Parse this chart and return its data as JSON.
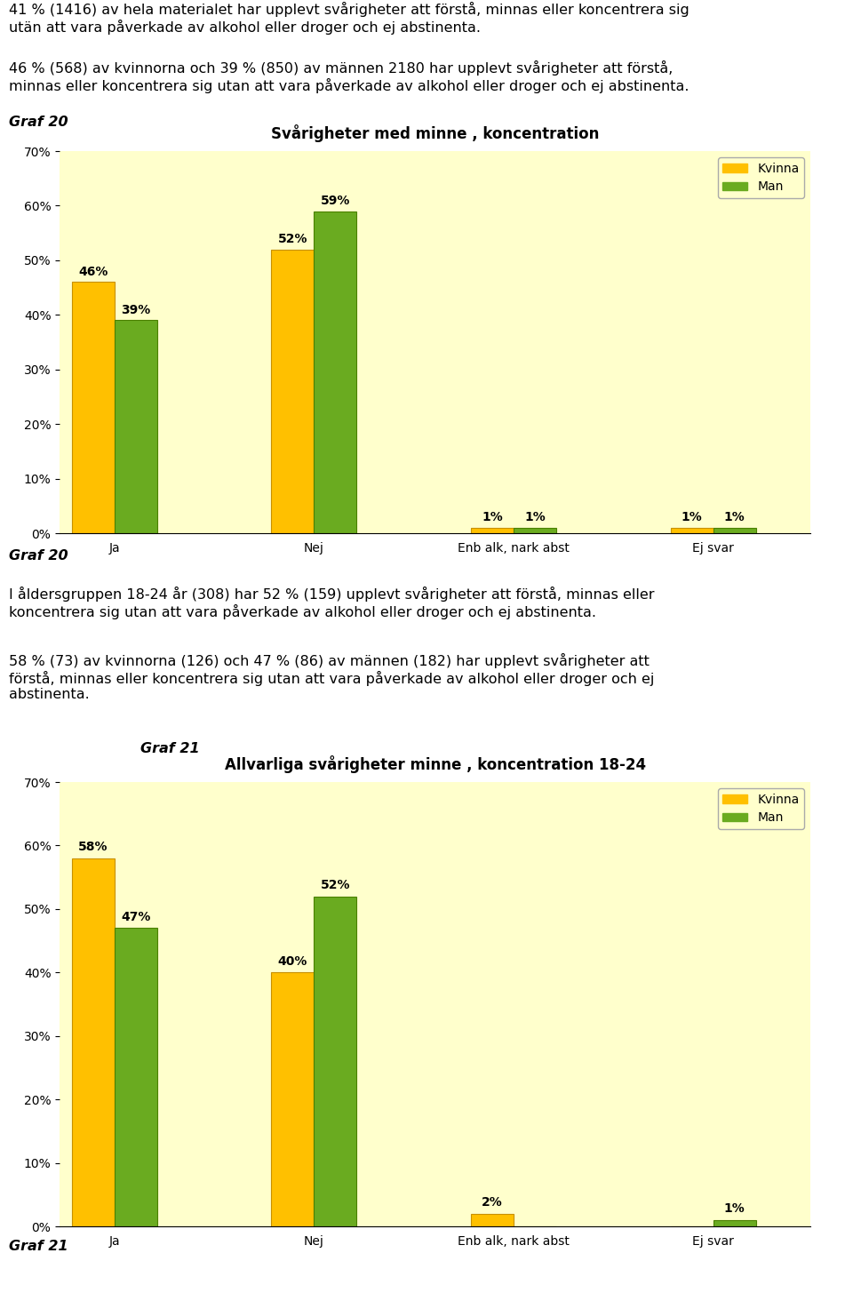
{
  "page_bg": "#ffffff",
  "chart_bg": "#ffffcc",
  "bar_color_kvinna": "#FFC000",
  "bar_color_man": "#6AAB20",
  "bar_edge_kvinna": "#C89000",
  "bar_edge_man": "#4A8000",
  "chart1_title": "Svårigheter med minne , koncentration",
  "chart1_categories": [
    "Ja",
    "Nej",
    "Enb alk, nark abst",
    "Ej svar"
  ],
  "chart1_kvinna": [
    46,
    52,
    1,
    1
  ],
  "chart1_man": [
    39,
    59,
    1,
    1
  ],
  "chart2_title": "Allvarliga svårigheter minne , koncentration 18-24",
  "chart2_categories": [
    "Ja",
    "Nej",
    "Enb alk, nark abst",
    "Ej svar"
  ],
  "chart2_kvinna": [
    58,
    40,
    2,
    0
  ],
  "chart2_man": [
    47,
    52,
    0,
    1
  ],
  "ylim": [
    0,
    70
  ],
  "yticks": [
    0,
    10,
    20,
    30,
    40,
    50,
    60,
    70
  ],
  "legend_kvinna": "Kvinna",
  "legend_man": "Man",
  "para1": "41 % (1416) av hela materialet har upplevt svårigheter att förstå, minnas eller koncentrera sig\nutän att vara påverkade av alkohol eller droger och ej abstinenta.",
  "para2": "46 % (568) av kvinnorna och 39 % (850) av männen 2180 har upplevt svårigheter att förstå,\nminnas eller koncentrera sig utan att vara påverkade av alkohol eller droger och ej abstinenta.",
  "graf20_label": "Graf 20",
  "para3": "I åldersgruppen 18-24 år (308) har 52 % (159) upplevt svårigheter att förstå, minnas eller\nkoncentrera sig utan att vara påverkade av alkohol eller droger och ej abstinenta.",
  "para4": "58 % (73) av kvinnorna (126) och 47 % (86) av männen (182) har upplevt svårigheter att\nförstå, minnas eller koncentrera sig utan att vara påverkade av alkohol eller droger och ej\nabstinenta.",
  "graf21_inline": "Graf 21",
  "graf20_footer": "Graf 20",
  "graf21_footer": "Graf 21",
  "text_fontsize": 11.5,
  "label_fontsize": 10,
  "title_fontsize": 12,
  "tick_fontsize": 10,
  "bar_label_fontsize": 10
}
